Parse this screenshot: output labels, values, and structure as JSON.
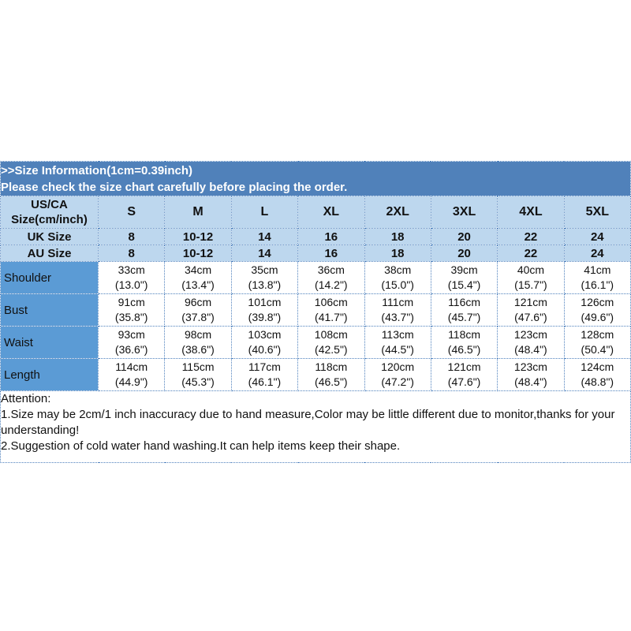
{
  "colors": {
    "banner_bg": "#5081ba",
    "header_light_bg": "#bdd7ee",
    "measure_label_bg": "#5b9bd5",
    "border": "#4f81bd",
    "banner_text": "#ffffff",
    "text": "#111111"
  },
  "banner": {
    "line1": ">>Size Information(1cm=0.39inch)",
    "line2": "Please check the size chart carefully before placing the order."
  },
  "size_chart": {
    "corner": {
      "line1": "US/CA",
      "line2": "Size(cm/inch)"
    },
    "size_columns": [
      "S",
      "M",
      "L",
      "XL",
      "2XL",
      "3XL",
      "4XL",
      "5XL"
    ],
    "size_rows": [
      {
        "label": "UK Size",
        "values": [
          "8",
          "10-12",
          "14",
          "16",
          "18",
          "20",
          "22",
          "24"
        ]
      },
      {
        "label": "AU Size",
        "values": [
          "8",
          "10-12",
          "14",
          "16",
          "18",
          "20",
          "22",
          "24"
        ]
      }
    ],
    "measurement_rows": [
      {
        "label": "Shoulder",
        "values": [
          {
            "cm": "33cm",
            "inch": "(13.0\")"
          },
          {
            "cm": "34cm",
            "inch": "(13.4\")"
          },
          {
            "cm": "35cm",
            "inch": "(13.8\")"
          },
          {
            "cm": "36cm",
            "inch": "(14.2\")"
          },
          {
            "cm": "38cm",
            "inch": "(15.0\")"
          },
          {
            "cm": "39cm",
            "inch": "(15.4\")"
          },
          {
            "cm": "40cm",
            "inch": "(15.7\")"
          },
          {
            "cm": "41cm",
            "inch": "(16.1\")"
          }
        ]
      },
      {
        "label": "Bust",
        "values": [
          {
            "cm": "91cm",
            "inch": "(35.8\")"
          },
          {
            "cm": "96cm",
            "inch": "(37.8\")"
          },
          {
            "cm": "101cm",
            "inch": "(39.8\")"
          },
          {
            "cm": "106cm",
            "inch": "(41.7\")"
          },
          {
            "cm": "111cm",
            "inch": "(43.7\")"
          },
          {
            "cm": "116cm",
            "inch": "(45.7\")"
          },
          {
            "cm": "121cm",
            "inch": "(47.6\")"
          },
          {
            "cm": "126cm",
            "inch": "(49.6\")"
          }
        ]
      },
      {
        "label": "Waist",
        "values": [
          {
            "cm": "93cm",
            "inch": "(36.6\")"
          },
          {
            "cm": "98cm",
            "inch": "(38.6\")"
          },
          {
            "cm": "103cm",
            "inch": "(40.6\")"
          },
          {
            "cm": "108cm",
            "inch": "(42.5\")"
          },
          {
            "cm": "113cm",
            "inch": "(44.5\")"
          },
          {
            "cm": "118cm",
            "inch": "(46.5\")"
          },
          {
            "cm": "123cm",
            "inch": "(48.4\")"
          },
          {
            "cm": "128cm",
            "inch": "(50.4\")"
          }
        ]
      },
      {
        "label": "Length",
        "values": [
          {
            "cm": "114cm",
            "inch": "(44.9\")"
          },
          {
            "cm": "115cm",
            "inch": "(45.3\")"
          },
          {
            "cm": "117cm",
            "inch": "(46.1\")"
          },
          {
            "cm": "118cm",
            "inch": "(46.5\")"
          },
          {
            "cm": "120cm",
            "inch": "(47.2\")"
          },
          {
            "cm": "121cm",
            "inch": "(47.6\")"
          },
          {
            "cm": "123cm",
            "inch": "(48.4\")"
          },
          {
            "cm": "124cm",
            "inch": "(48.8\")"
          }
        ]
      }
    ]
  },
  "attention": {
    "title": "Attention:",
    "lines": [
      "1.Size may be 2cm/1 inch inaccuracy due to hand measure,Color may be little different due to monitor,thanks for your understanding!",
      "2.Suggestion of cold water hand washing.It can help items keep their shape."
    ]
  }
}
